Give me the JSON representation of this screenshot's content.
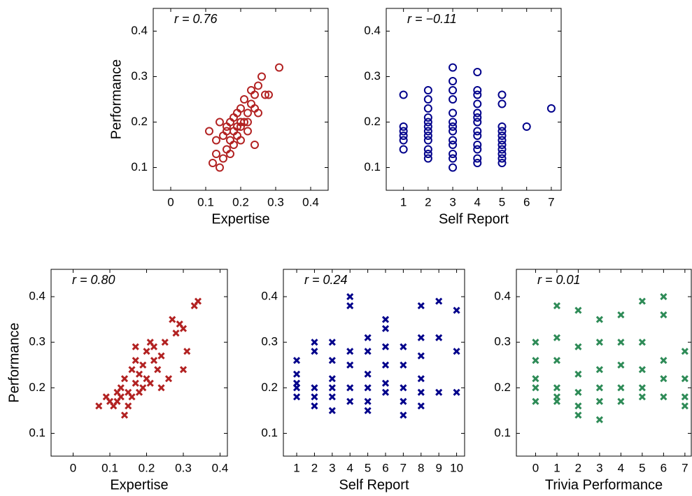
{
  "chart_data": [
    {
      "type": "scatter",
      "annotation": "r = 0.76",
      "xlabel": "Expertise",
      "ylabel": "Performance",
      "color": "#b22222",
      "marker": "o",
      "xlim": [
        -0.05,
        0.45
      ],
      "ylim": [
        0.05,
        0.45
      ],
      "xticks": [
        0,
        0.1,
        0.2,
        0.3,
        0.4
      ],
      "yticks": [
        0.1,
        0.2,
        0.3,
        0.4
      ],
      "x": [
        0.12,
        0.13,
        0.14,
        0.15,
        0.15,
        0.16,
        0.16,
        0.17,
        0.17,
        0.18,
        0.18,
        0.18,
        0.19,
        0.19,
        0.2,
        0.2,
        0.2,
        0.21,
        0.21,
        0.22,
        0.22,
        0.23,
        0.23,
        0.24,
        0.24,
        0.25,
        0.25,
        0.26,
        0.27,
        0.28,
        0.31,
        0.13,
        0.14,
        0.16,
        0.17,
        0.2,
        0.22,
        0.24,
        0.11,
        0.19
      ],
      "y": [
        0.11,
        0.13,
        0.1,
        0.12,
        0.17,
        0.14,
        0.19,
        0.16,
        0.2,
        0.18,
        0.15,
        0.21,
        0.17,
        0.22,
        0.19,
        0.23,
        0.16,
        0.2,
        0.25,
        0.22,
        0.18,
        0.24,
        0.27,
        0.26,
        0.15,
        0.28,
        0.22,
        0.3,
        0.26,
        0.26,
        0.32,
        0.16,
        0.2,
        0.18,
        0.13,
        0.2,
        0.2,
        0.23,
        0.18,
        0.19
      ]
    },
    {
      "type": "scatter",
      "annotation": "r = −0.11",
      "xlabel": "Self Report",
      "color": "#00008b",
      "marker": "o",
      "xlim": [
        0.3,
        7.4
      ],
      "ylim": [
        0.05,
        0.45
      ],
      "xticks": [
        1,
        2,
        3,
        4,
        5,
        6,
        7
      ],
      "yticks": [
        0.1,
        0.2,
        0.3,
        0.4
      ],
      "x": [
        1,
        1,
        1,
        1,
        1,
        1,
        2,
        2,
        2,
        2,
        2,
        2,
        2,
        2,
        2,
        2,
        2,
        2,
        3,
        3,
        3,
        3,
        3,
        3,
        3,
        3,
        3,
        3,
        3,
        3,
        3,
        4,
        4,
        4,
        4,
        4,
        4,
        4,
        4,
        4,
        4,
        4,
        4,
        4,
        5,
        5,
        5,
        5,
        5,
        5,
        5,
        5,
        5,
        5,
        5,
        6,
        7
      ],
      "y": [
        0.26,
        0.19,
        0.18,
        0.17,
        0.16,
        0.14,
        0.27,
        0.25,
        0.23,
        0.21,
        0.2,
        0.19,
        0.18,
        0.17,
        0.16,
        0.14,
        0.13,
        0.12,
        0.32,
        0.29,
        0.27,
        0.25,
        0.22,
        0.2,
        0.19,
        0.18,
        0.16,
        0.15,
        0.13,
        0.12,
        0.1,
        0.31,
        0.27,
        0.26,
        0.24,
        0.22,
        0.21,
        0.2,
        0.18,
        0.17,
        0.15,
        0.14,
        0.12,
        0.11,
        0.26,
        0.24,
        0.19,
        0.18,
        0.17,
        0.16,
        0.15,
        0.14,
        0.13,
        0.12,
        0.11,
        0.19,
        0.23
      ]
    },
    {
      "type": "scatter",
      "annotation": "r = 0.80",
      "xlabel": "Expertise",
      "ylabel": "Performance",
      "color": "#b22222",
      "marker": "x",
      "xlim": [
        -0.06,
        0.42
      ],
      "ylim": [
        0.05,
        0.46
      ],
      "xticks": [
        0,
        0.1,
        0.2,
        0.3,
        0.4
      ],
      "yticks": [
        0.1,
        0.2,
        0.3,
        0.4
      ],
      "x": [
        0.07,
        0.09,
        0.1,
        0.11,
        0.12,
        0.12,
        0.13,
        0.13,
        0.14,
        0.14,
        0.15,
        0.15,
        0.16,
        0.16,
        0.17,
        0.17,
        0.18,
        0.18,
        0.19,
        0.19,
        0.2,
        0.2,
        0.21,
        0.21,
        0.22,
        0.22,
        0.23,
        0.24,
        0.25,
        0.26,
        0.27,
        0.28,
        0.29,
        0.3,
        0.31,
        0.33,
        0.34,
        0.17,
        0.24,
        0.3
      ],
      "y": [
        0.16,
        0.18,
        0.17,
        0.16,
        0.19,
        0.17,
        0.2,
        0.18,
        0.14,
        0.22,
        0.19,
        0.16,
        0.24,
        0.18,
        0.21,
        0.26,
        0.19,
        0.23,
        0.25,
        0.2,
        0.28,
        0.22,
        0.3,
        0.21,
        0.26,
        0.29,
        0.24,
        0.27,
        0.3,
        0.22,
        0.35,
        0.32,
        0.34,
        0.33,
        0.28,
        0.38,
        0.39,
        0.29,
        0.2,
        0.24
      ]
    },
    {
      "type": "scatter",
      "annotation": "r = 0.24",
      "xlabel": "Self Report",
      "color": "#00008b",
      "marker": "x",
      "xlim": [
        0.25,
        10.45
      ],
      "ylim": [
        0.05,
        0.46
      ],
      "xticks": [
        1,
        2,
        3,
        4,
        5,
        6,
        7,
        8,
        9,
        10
      ],
      "yticks": [
        0.1,
        0.2,
        0.3,
        0.4
      ],
      "x": [
        1,
        1,
        1,
        1,
        1,
        2,
        2,
        2,
        2,
        2,
        3,
        3,
        3,
        3,
        3,
        3,
        4,
        4,
        4,
        4,
        4,
        4,
        5,
        5,
        5,
        5,
        5,
        5,
        6,
        6,
        6,
        6,
        6,
        6,
        7,
        7,
        7,
        7,
        7,
        8,
        8,
        8,
        8,
        8,
        8,
        9,
        9,
        9,
        10,
        10,
        10
      ],
      "y": [
        0.26,
        0.23,
        0.21,
        0.2,
        0.18,
        0.3,
        0.28,
        0.2,
        0.18,
        0.16,
        0.3,
        0.26,
        0.22,
        0.2,
        0.18,
        0.15,
        0.4,
        0.38,
        0.28,
        0.25,
        0.2,
        0.17,
        0.31,
        0.28,
        0.23,
        0.2,
        0.17,
        0.15,
        0.35,
        0.33,
        0.29,
        0.25,
        0.21,
        0.19,
        0.29,
        0.25,
        0.2,
        0.17,
        0.14,
        0.38,
        0.31,
        0.27,
        0.22,
        0.19,
        0.16,
        0.39,
        0.31,
        0.19,
        0.37,
        0.28,
        0.19
      ]
    },
    {
      "type": "scatter",
      "annotation": "r = 0.01",
      "xlabel": "Trivia Performance",
      "color": "#2e8b57",
      "marker": "x",
      "xlim": [
        -0.9,
        7.3
      ],
      "ylim": [
        0.05,
        0.46
      ],
      "xticks": [
        0,
        1,
        2,
        3,
        4,
        5,
        6,
        7
      ],
      "yticks": [
        0.1,
        0.2,
        0.3,
        0.4
      ],
      "x": [
        0,
        0,
        0,
        0,
        0,
        1,
        1,
        1,
        1,
        1,
        1,
        2,
        2,
        2,
        2,
        2,
        2,
        3,
        3,
        3,
        3,
        3,
        3,
        4,
        4,
        4,
        4,
        4,
        5,
        5,
        5,
        5,
        5,
        6,
        6,
        6,
        6,
        6,
        7,
        7,
        7,
        7
      ],
      "y": [
        0.3,
        0.26,
        0.22,
        0.2,
        0.17,
        0.38,
        0.31,
        0.26,
        0.2,
        0.18,
        0.17,
        0.37,
        0.29,
        0.23,
        0.19,
        0.16,
        0.14,
        0.35,
        0.3,
        0.24,
        0.2,
        0.17,
        0.13,
        0.36,
        0.3,
        0.25,
        0.2,
        0.17,
        0.39,
        0.3,
        0.24,
        0.2,
        0.18,
        0.4,
        0.36,
        0.26,
        0.22,
        0.18,
        0.28,
        0.22,
        0.18,
        0.16
      ]
    }
  ]
}
